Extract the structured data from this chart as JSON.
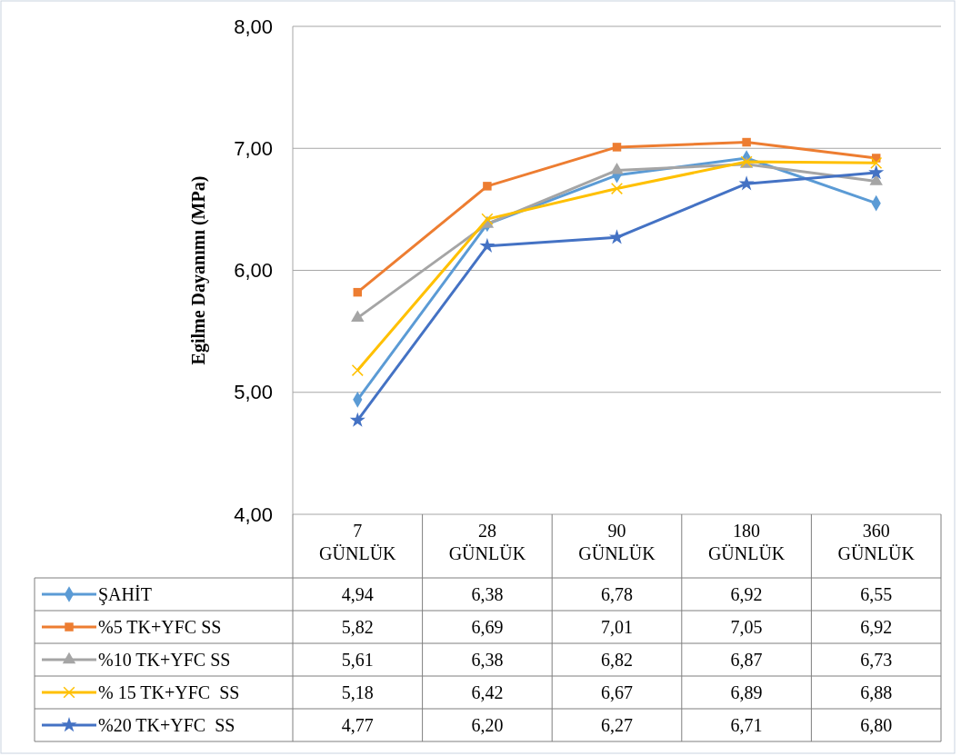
{
  "chart_data": {
    "type": "line",
    "ylabel": "Egilme Dayanımı (MPa)",
    "categories": [
      "7 GÜNLÜK",
      "28 GÜNLÜK",
      "90 GÜNLÜK",
      "180 GÜNLÜK",
      "360 GÜNLÜK"
    ],
    "series": [
      {
        "name": "ŞAHİT",
        "color": "#5b9bd5",
        "marker": "diamond",
        "values": [
          4.94,
          6.38,
          6.78,
          6.92,
          6.55
        ],
        "value_labels": [
          "4,94",
          "6,38",
          "6,78",
          "6,92",
          "6,55"
        ]
      },
      {
        "name": "%5 TK+YFC SS",
        "color": "#ed7d31",
        "marker": "square",
        "values": [
          5.82,
          6.69,
          7.01,
          7.05,
          6.92
        ],
        "value_labels": [
          "5,82",
          "6,69",
          "7,01",
          "7,05",
          "6,92"
        ]
      },
      {
        "name": "%10 TK+YFC SS",
        "color": "#a5a5a5",
        "marker": "triangle",
        "values": [
          5.61,
          6.38,
          6.82,
          6.87,
          6.73
        ],
        "value_labels": [
          "5,61",
          "6,38",
          "6,82",
          "6,87",
          "6,73"
        ]
      },
      {
        "name": "% 15 TK+YFC  SS",
        "color": "#ffc000",
        "marker": "cross",
        "values": [
          5.18,
          6.42,
          6.67,
          6.89,
          6.88
        ],
        "value_labels": [
          "5,18",
          "6,42",
          "6,67",
          "6,89",
          "6,88"
        ]
      },
      {
        "name": "%20 TK+YFC  SS",
        "color": "#4472c4",
        "marker": "star",
        "values": [
          4.77,
          6.2,
          6.27,
          6.71,
          6.8
        ],
        "value_labels": [
          "4,77",
          "6,20",
          "6,27",
          "6,71",
          "6,80"
        ]
      }
    ],
    "ylim": [
      4,
      8
    ],
    "yticks": [
      {
        "value": 4,
        "label": "4,00"
      },
      {
        "value": 5,
        "label": "5,00"
      },
      {
        "value": 6,
        "label": "6,00"
      },
      {
        "value": 7,
        "label": "7,00"
      },
      {
        "value": 8,
        "label": "8,00"
      }
    ],
    "grid": "y",
    "legend": "bottom"
  }
}
